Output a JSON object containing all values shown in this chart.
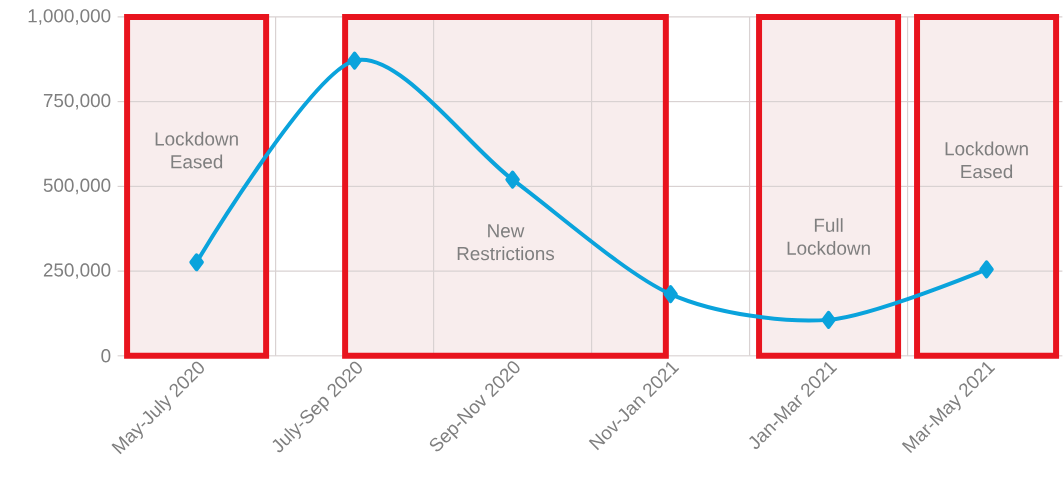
{
  "chart_data": {
    "type": "line",
    "categories": [
      "May-July 2020",
      "July-Sep 2020",
      "Sep-Nov 2020",
      "Nov-Jan 2021",
      "Jan-Mar 2021",
      "Mar-May 2021"
    ],
    "series": [
      {
        "color": "#0aa3dc",
        "values": [
          276000,
          871000,
          520000,
          182000,
          106000,
          255000
        ]
      }
    ],
    "ylim": [
      0,
      1000000
    ],
    "yticks": [
      0,
      {
        "value": 250000,
        "label": "250,000"
      },
      {
        "value": 500000,
        "label": "500,000"
      },
      {
        "value": 750000,
        "label": "750,000"
      },
      {
        "value": 1000000,
        "label": "1,000,000"
      }
    ],
    "grid": true,
    "marker": "diamond",
    "line_style": "solid",
    "bands": [
      {
        "axis": "x",
        "from": "May-July 2020",
        "to": "May-July 2020",
        "label": "Lockdown Eased",
        "color": "#f8eded"
      },
      {
        "axis": "x",
        "from": "July-Sep 2020",
        "to": "Nov-Jan 2021",
        "label": "New Restrictions",
        "color": "#f8eded"
      },
      {
        "axis": "x",
        "from": "Jan-Mar 2021",
        "to": "Jan-Mar 2021",
        "label": "Full Lockdown",
        "color": "#f8eded"
      },
      {
        "axis": "x",
        "from": "Mar-May 2021",
        "to": "Mar-May 2021",
        "label": "Lockdown Eased",
        "color": "#f8eded"
      }
    ]
  }
}
